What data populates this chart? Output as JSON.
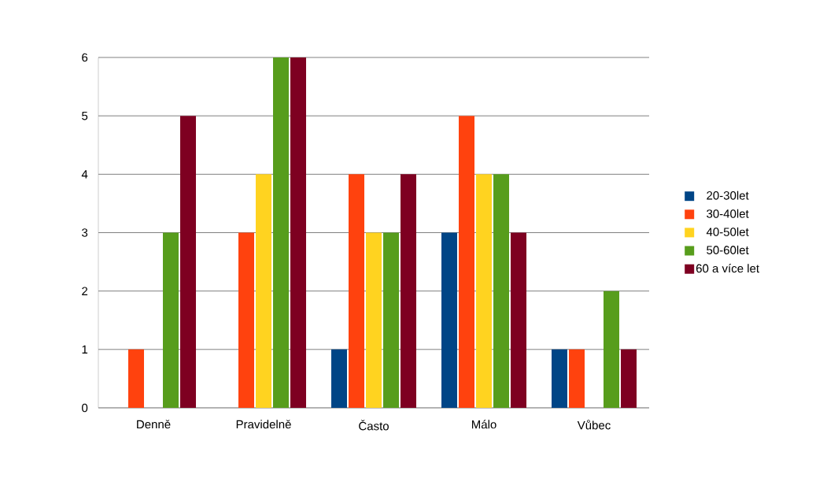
{
  "chart_data": {
    "type": "bar",
    "categories": [
      "Denně",
      "Pravidelně",
      "Často",
      "Málo",
      "Vůbec"
    ],
    "series": [
      {
        "name": "20-30let",
        "color": "#004586",
        "values": [
          0,
          0,
          1,
          3,
          1
        ]
      },
      {
        "name": "30-40let",
        "color": "#ff420e",
        "values": [
          1,
          3,
          4,
          5,
          1
        ]
      },
      {
        "name": "40-50let",
        "color": "#ffd320",
        "values": [
          0,
          4,
          3,
          4,
          0
        ]
      },
      {
        "name": "50-60let",
        "color": "#579d1c",
        "values": [
          3,
          6,
          3,
          4,
          2
        ]
      },
      {
        "name": "60 a více let",
        "color": "#7e0021",
        "values": [
          5,
          6,
          4,
          3,
          1
        ]
      }
    ],
    "ylim": [
      0,
      6
    ],
    "yticks": [
      0,
      1,
      2,
      3,
      4,
      5,
      6
    ],
    "grid": "y",
    "legend": "right"
  }
}
